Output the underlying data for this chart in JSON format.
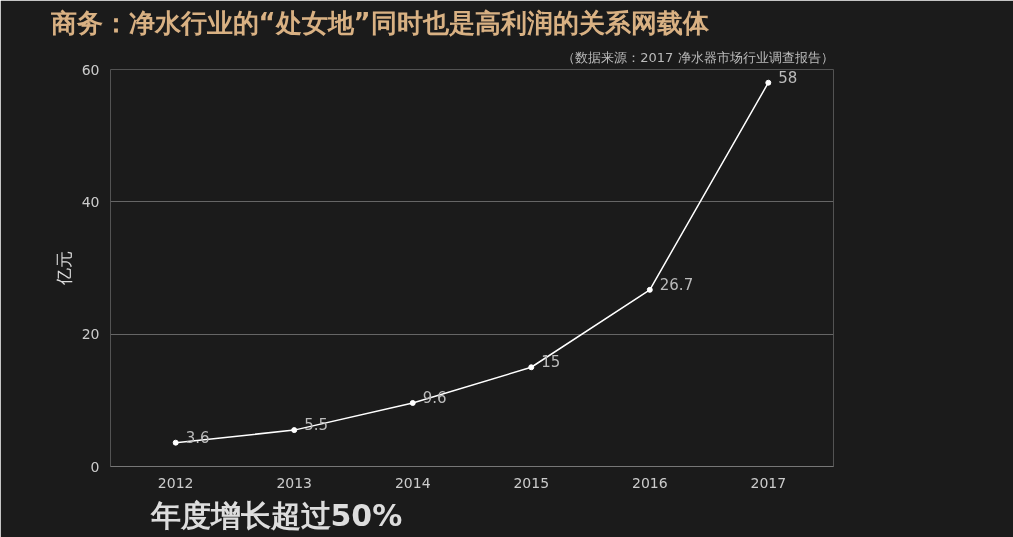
{
  "chart_data": {
    "type": "line",
    "title": "商务：净水行业的“处女地”同时也是高利润的关系网载体",
    "ylabel": "亿元",
    "categories": [
      "2012",
      "2013",
      "2014",
      "2015",
      "2016",
      "2017"
    ],
    "series": [
      {
        "color": "#ffffff",
        "values": [
          3.6,
          5.5,
          9.6,
          15,
          26.7,
          58
        ]
      }
    ],
    "ylim": [
      0,
      60
    ],
    "yticks": [
      0,
      20,
      40,
      60
    ],
    "grid": "y",
    "marker": "circle",
    "line_style": "solid",
    "data_labels": true,
    "annotations": [
      "（数据来源：2017 净水器市场行业调查报告）",
      "年度增长超过50%"
    ]
  }
}
